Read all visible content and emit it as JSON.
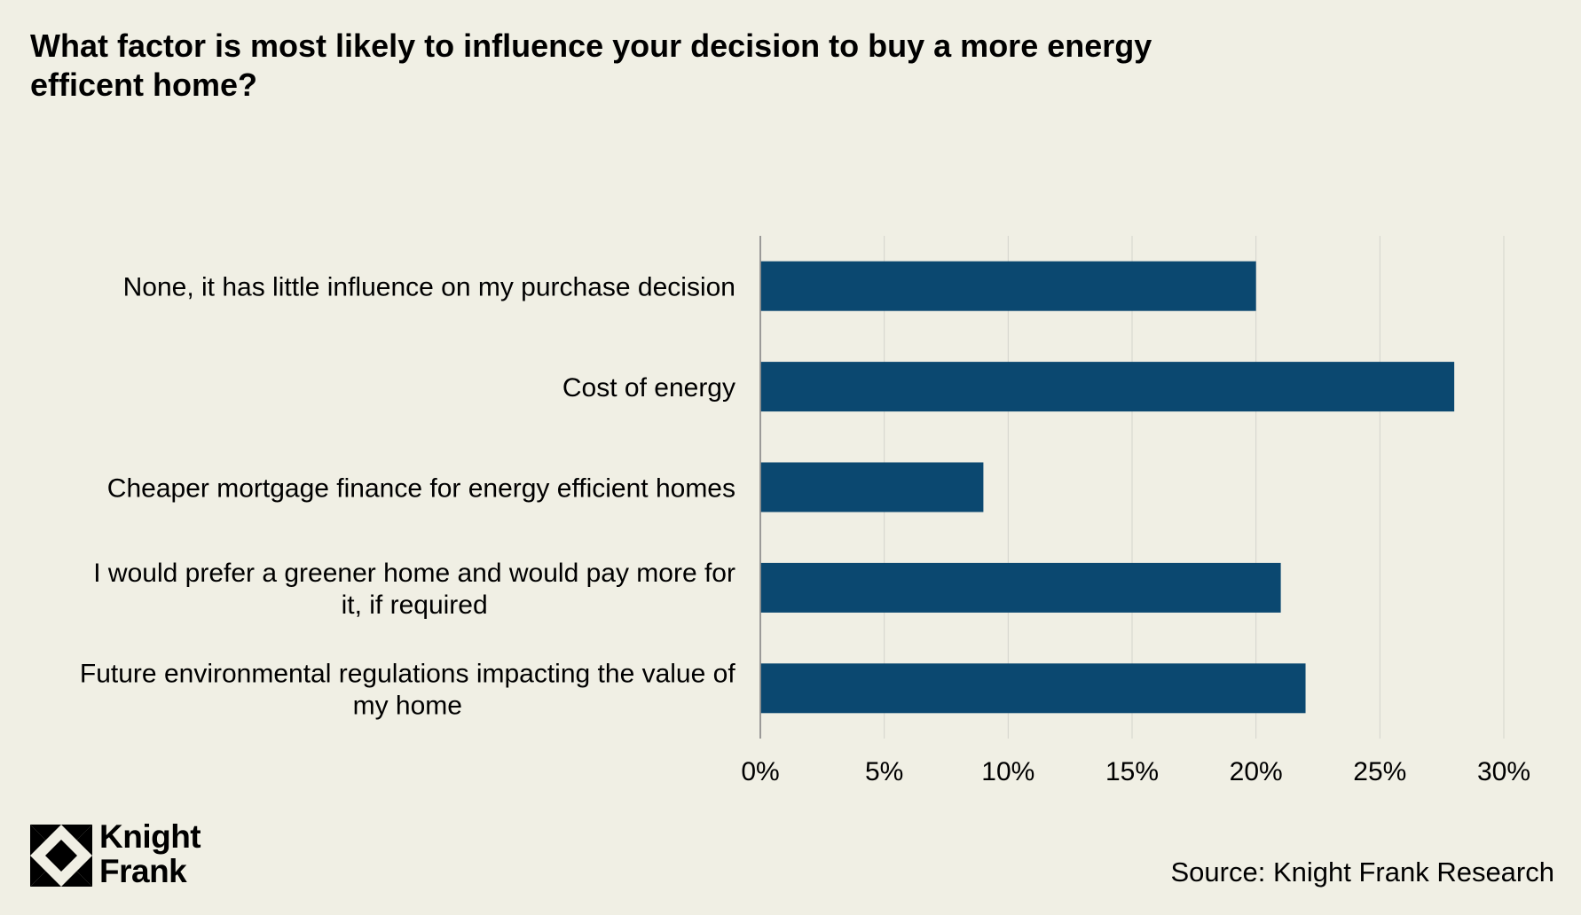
{
  "title": "What factor is most likely to influence your decision to buy a more energy\nefficent home?",
  "source": "Source: Knight Frank Research",
  "logo": {
    "line1": "Knight",
    "line2": "Frank"
  },
  "colors": {
    "background": "#f0efe4",
    "bar": "#0b4870",
    "grid": "#d4d4cc",
    "axis": "#7f7f7f",
    "text": "#000000"
  },
  "chart_data": {
    "type": "bar",
    "orientation": "horizontal",
    "categories": [
      "None, it has little influence on my purchase decision",
      "Cost of energy",
      "Cheaper mortgage finance for energy efficient homes",
      "I would prefer a greener home and would pay more for it, if required",
      "Future environmental regulations impacting the value of my home"
    ],
    "category_lines": [
      [
        "None, it has little influence on my purchase decision"
      ],
      [
        "Cost of energy"
      ],
      [
        "Cheaper mortgage finance for energy efficient homes"
      ],
      [
        "I would prefer a greener home and would pay more for",
        "it, if required"
      ],
      [
        "Future environmental regulations impacting the value of",
        "my home"
      ]
    ],
    "values": [
      20,
      28,
      9,
      21,
      22
    ],
    "xlim": [
      0,
      30
    ],
    "xticks": [
      0,
      5,
      10,
      15,
      20,
      25,
      30
    ],
    "xtick_labels": [
      "0%",
      "5%",
      "10%",
      "15%",
      "20%",
      "25%",
      "30%"
    ],
    "grid": true,
    "legend": "none"
  }
}
